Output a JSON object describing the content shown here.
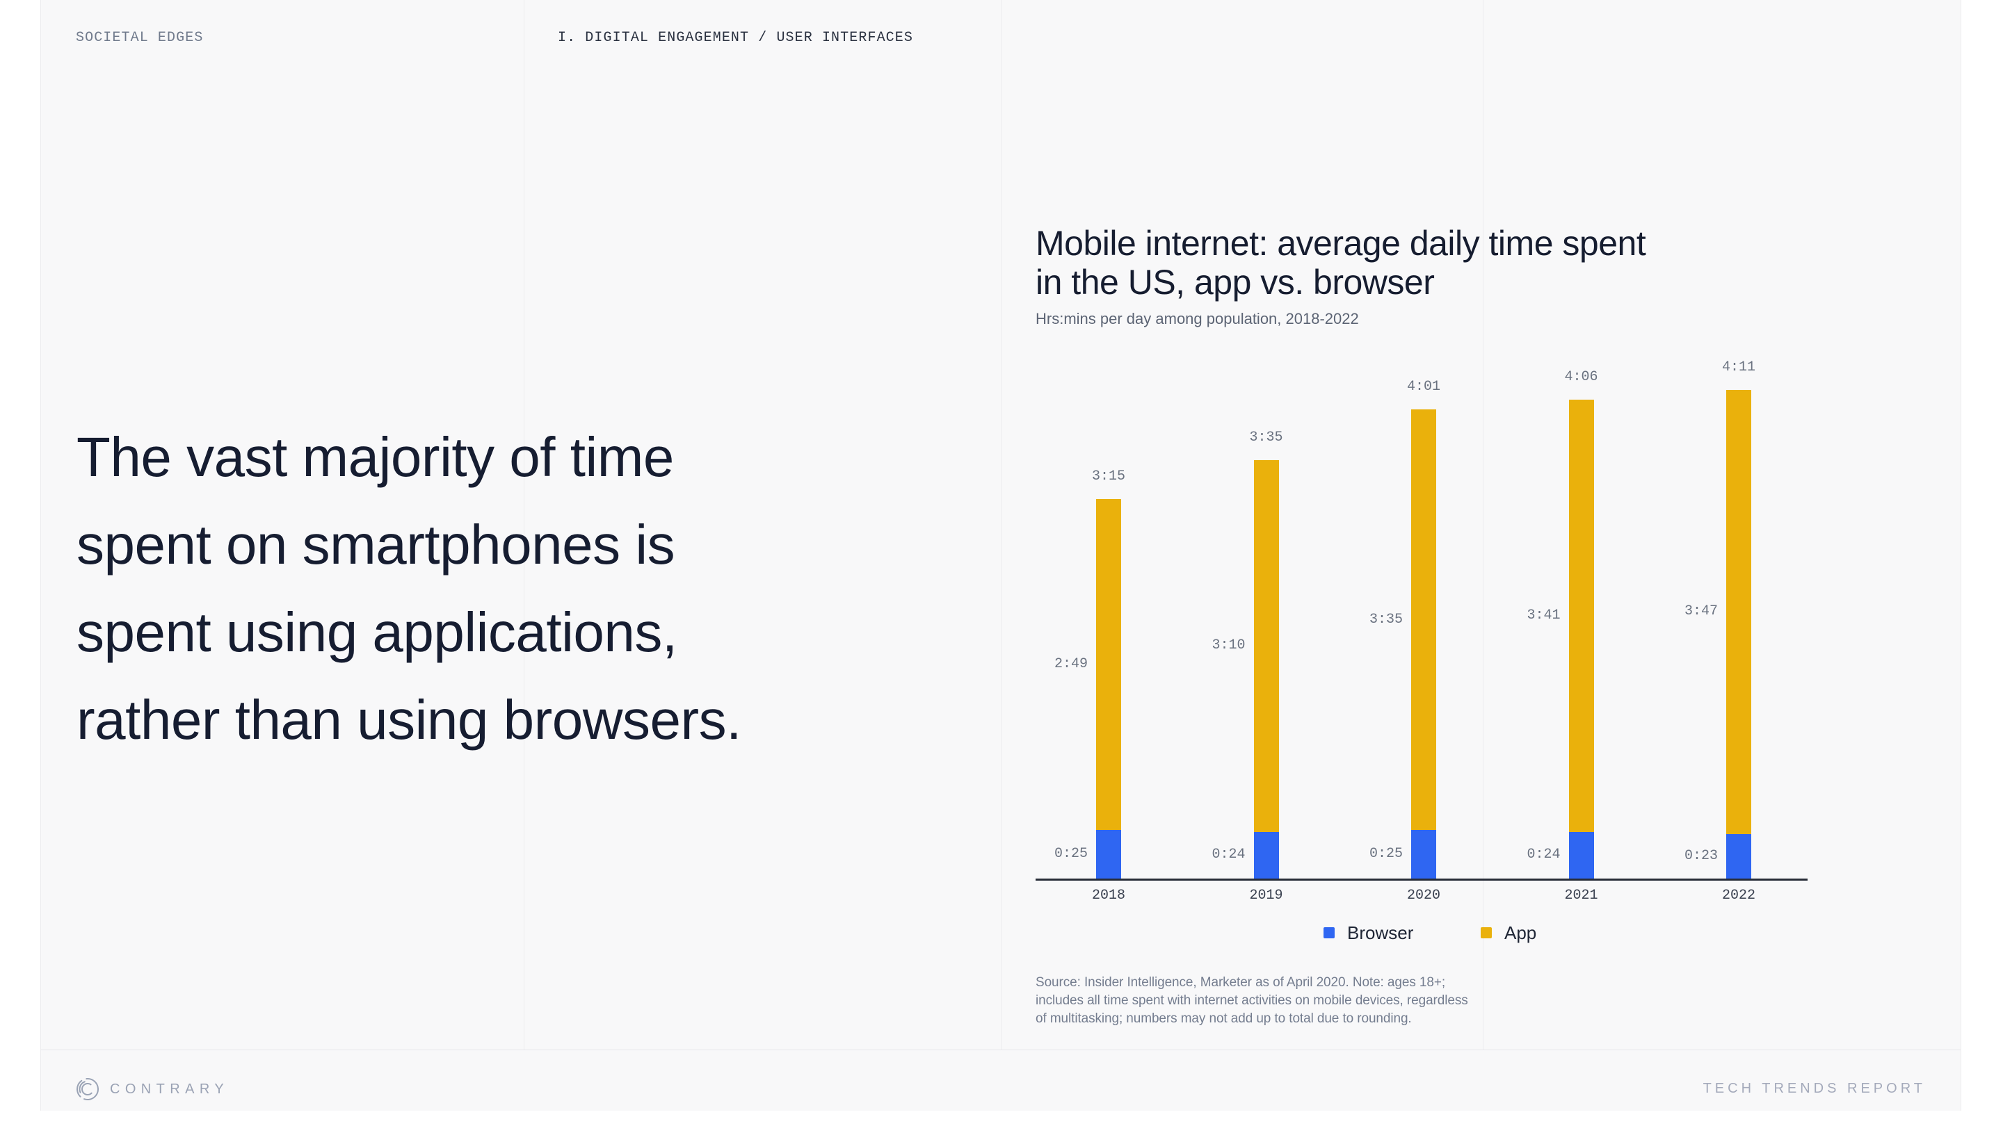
{
  "kicker": {
    "left": "SOCIETAL EDGES",
    "center": "I. DIGITAL ENGAGEMENT / USER INTERFACES"
  },
  "headline": {
    "lines": [
      "The vast majority of time",
      "spent on smartphones is",
      "spent using applications,",
      "rather than using browsers."
    ]
  },
  "chart": {
    "title_line1": "Mobile internet: average daily time spent",
    "title_line2": "in the US, app vs. browser",
    "subtitle": "Hrs:mins per day among population, 2018-2022",
    "source_lines": [
      "Source: Insider Intelligence, Marketer as of April 2020. Note: ages 18+;",
      "includes all time spent with internet activities on mobile devices, regardless",
      "of multitasking; numbers may not add up to total due to rounding."
    ]
  },
  "chart_data": {
    "type": "bar",
    "stacked": true,
    "title": "Mobile internet: average daily time spent in the US, app vs. browser",
    "subtitle": "Hrs:mins per day among population, 2018-2022",
    "unit": "hrs:mins per day",
    "xlabel": "",
    "ylabel": "",
    "grid": false,
    "legend_position": "bottom",
    "categories": [
      "2018",
      "2019",
      "2020",
      "2021",
      "2022"
    ],
    "series": [
      {
        "name": "Browser",
        "color": "#2f66f2",
        "labels": [
          "0:25",
          "0:24",
          "0:25",
          "0:24",
          "0:23"
        ],
        "values_min": [
          25,
          24,
          25,
          24,
          23
        ]
      },
      {
        "name": "App",
        "color": "#eab10c",
        "labels": [
          "2:49",
          "3:10",
          "3:35",
          "3:41",
          "3:47"
        ],
        "values_min": [
          169,
          190,
          215,
          221,
          227
        ]
      }
    ],
    "totals": {
      "labels": [
        "3:15",
        "3:35",
        "4:01",
        "4:06",
        "4:11"
      ],
      "values_min": [
        195,
        215,
        241,
        246,
        251
      ]
    }
  },
  "footer": {
    "brand": "CONTRARY",
    "report": "TECH TRENDS REPORT"
  },
  "colors": {
    "page_background": "#f8f8f9",
    "outer_background": "#ffffff",
    "hairline": "#ececef",
    "headline_text": "#161d31",
    "axis": "#272c37",
    "value_label": "#6a7280",
    "browser_blue": "#2f66f2",
    "app_yellow": "#eab10c",
    "footer_gray": "#9aa2b4"
  }
}
